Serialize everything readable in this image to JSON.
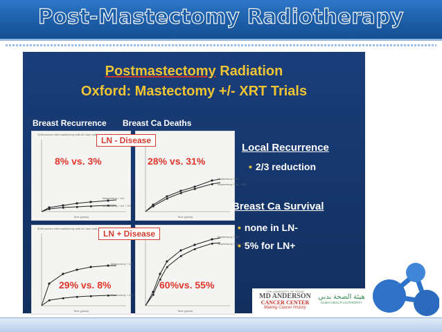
{
  "header": {
    "title": "Post-Mastectomy Radiotherapy"
  },
  "slide": {
    "title_line1": "Postmastectomy",
    "title_line1b": " Radiation",
    "title_line2": "Oxford: Mastectomy +/- XRT Trials",
    "col1_label": "Breast Recurrence",
    "col2_label": "Breast Ca Deaths",
    "box_top": "LN - Disease",
    "box_bottom": "LN + Disease",
    "stats": {
      "tl": "8% vs. 3%",
      "tr": "28% vs. 31%",
      "bl": "29% vs. 8%",
      "br": "60%vs. 55%"
    },
    "plot_texts": {
      "tl_header": "1428 women with mastectomy with AC and node-negative disease",
      "bl_header": "8345 women with mastectomy with AC and node-positive disease",
      "xaxis": "Time (years)",
      "ylab_left": "Isolated local recurrence (%)",
      "ylab_right": "Breast cancer mortality (%)",
      "tl_legend_a": "Mastectomy + AC",
      "tl_legend_b": "Mastectomy + AC + RT",
      "tr_legend_a": "Mastectomy + AC",
      "tr_legend_b": "Mastectomy + AC + RT",
      "bl_legend_a": "Mastectomy + AC",
      "bl_legend_b": "Mastectomy + AC + RT",
      "br_legend_a": "Mastectomy + AC",
      "br_legend_b": "Mastectomy + AC + RT"
    },
    "right": {
      "h1": "Local Recurrence",
      "b1": "2/3 reduction",
      "h2": "Breast Ca Survival",
      "b2": "none in LN-",
      "b3": "5% for LN+"
    },
    "logo1": {
      "line1": "THE UNIVERSITY OF TEXAS",
      "line2": "MD ANDERSON",
      "line3": "CANCER CENTER",
      "line4": "Making Cancer History"
    },
    "logo2": {
      "line1": "هيئة الصحة بدبي",
      "line2": "DUBAI HEALTH AUTHORITY"
    }
  },
  "colors": {
    "header_blue": "#1c5ea9",
    "slide_navy": "#153569",
    "title_gold": "#f0c534",
    "stat_red": "#e2352a",
    "logo_blue": "#2e73c9"
  },
  "icons": {
    "corner": "molecule-network-icon"
  }
}
